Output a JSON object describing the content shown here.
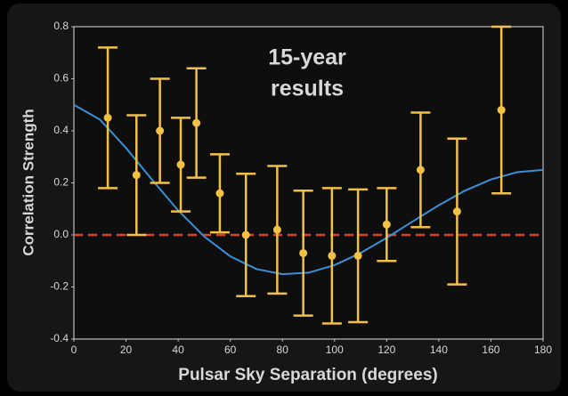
{
  "chart_data": {
    "type": "scatter",
    "annotation": [
      "15-year",
      "results"
    ],
    "xlabel": "Pulsar Sky Separation (degrees)",
    "ylabel": "Correlation Strength",
    "x": [
      13,
      24,
      33,
      41,
      47,
      56,
      66,
      78,
      88,
      99,
      109,
      120,
      133,
      147,
      164
    ],
    "values": [
      0.45,
      0.23,
      0.4,
      0.27,
      0.43,
      0.16,
      0.0,
      0.02,
      -0.07,
      -0.08,
      -0.08,
      0.04,
      0.25,
      0.09,
      0.48
    ],
    "error": [
      0.27,
      0.23,
      0.2,
      0.18,
      0.21,
      0.15,
      0.235,
      0.245,
      0.24,
      0.26,
      0.255,
      0.14,
      0.22,
      0.28,
      0.32
    ],
    "color": "#f2c144",
    "curve": {
      "x": [
        0,
        10,
        20,
        30,
        40,
        50,
        60,
        70,
        80,
        90,
        100,
        110,
        120,
        130,
        140,
        150,
        160,
        170,
        180
      ],
      "values": [
        0.5,
        0.443,
        0.334,
        0.212,
        0.094,
        -0.006,
        -0.082,
        -0.131,
        -0.151,
        -0.145,
        -0.116,
        -0.069,
        -0.011,
        0.052,
        0.114,
        0.17,
        0.213,
        0.241,
        0.25
      ],
      "color": "#3b8fd8"
    },
    "reference_line": {
      "y": 0,
      "color": "#d9442b",
      "style": "dashed"
    },
    "xlim": [
      0,
      180
    ],
    "ylim": [
      -0.4,
      0.8
    ],
    "xticks": [
      0,
      20,
      40,
      60,
      80,
      100,
      120,
      140,
      160,
      180
    ],
    "yticks": [
      -0.4,
      -0.2,
      {
        "value": 0,
        "label": "0.0"
      },
      0.2,
      0.4,
      0.6,
      0.8
    ]
  }
}
